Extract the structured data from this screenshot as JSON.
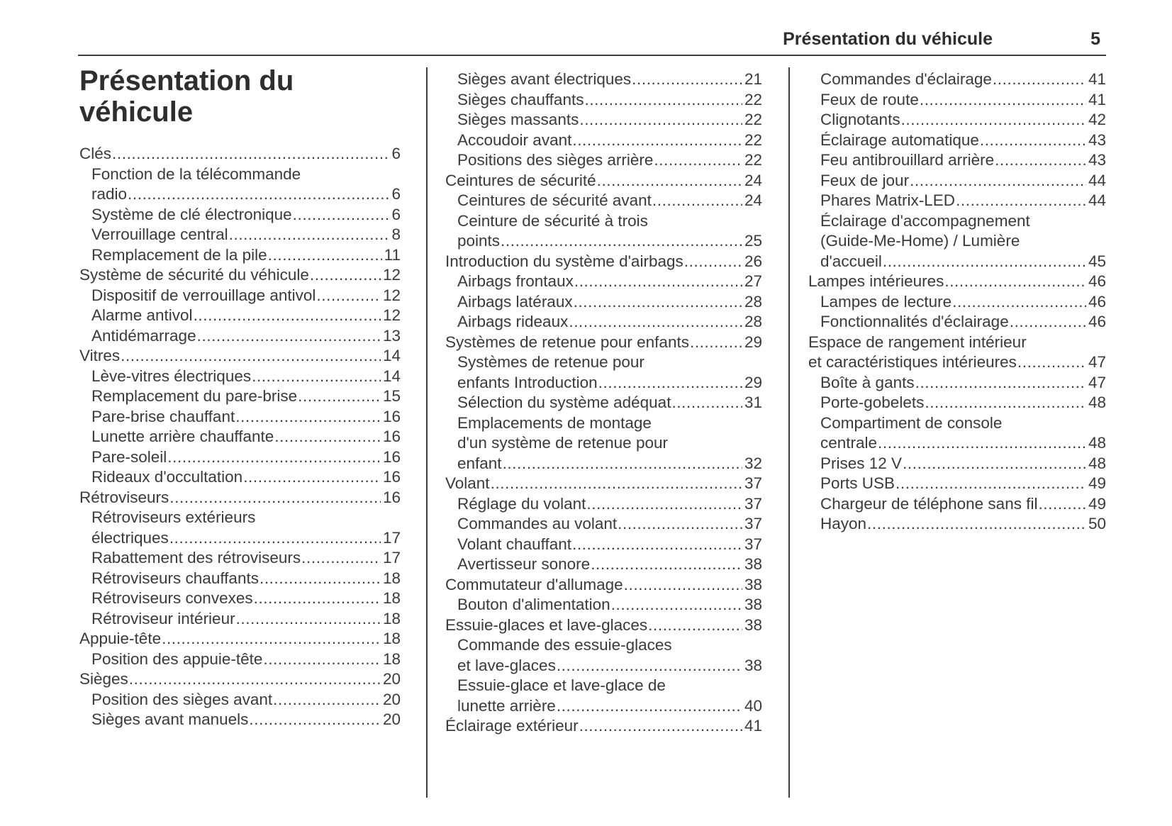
{
  "header": {
    "section_title": "Présentation du véhicule",
    "page_number": "5"
  },
  "title": {
    "lines": [
      "Présentation du",
      "véhicule"
    ]
  },
  "colors": {
    "bg": "#ffffff",
    "text": "#3a3a3a",
    "heading": "#2e2e2e",
    "rule": "#3d3d3d"
  },
  "columns": [
    {
      "entries": [
        {
          "level": 1,
          "lines": [
            "Clés"
          ],
          "page": "6"
        },
        {
          "level": 2,
          "lines": [
            "Fonction de la télécommande",
            "radio"
          ],
          "page": "6"
        },
        {
          "level": 2,
          "lines": [
            "Système de clé électronique"
          ],
          "page": "6"
        },
        {
          "level": 2,
          "lines": [
            "Verrouillage central"
          ],
          "page": "8"
        },
        {
          "level": 2,
          "lines": [
            "Remplacement de la pile"
          ],
          "page": "11"
        },
        {
          "level": 1,
          "lines": [
            "Système de sécurité du véhicule"
          ],
          "page": "12"
        },
        {
          "level": 2,
          "lines": [
            "Dispositif de verrouillage antivol"
          ],
          "page": "12"
        },
        {
          "level": 2,
          "lines": [
            "Alarme antivol"
          ],
          "page": "12"
        },
        {
          "level": 2,
          "lines": [
            "Antidémarrage"
          ],
          "page": "13"
        },
        {
          "level": 1,
          "lines": [
            "Vitres"
          ],
          "page": "14"
        },
        {
          "level": 2,
          "lines": [
            "Lève-vitres électriques"
          ],
          "page": "14"
        },
        {
          "level": 2,
          "lines": [
            "Remplacement du pare-brise"
          ],
          "page": "15"
        },
        {
          "level": 2,
          "lines": [
            "Pare-brise chauffant"
          ],
          "page": "16"
        },
        {
          "level": 2,
          "lines": [
            "Lunette arrière chauffante"
          ],
          "page": "16"
        },
        {
          "level": 2,
          "lines": [
            "Pare-soleil"
          ],
          "page": "16"
        },
        {
          "level": 2,
          "lines": [
            "Rideaux d'occultation"
          ],
          "page": "16"
        },
        {
          "level": 1,
          "lines": [
            "Rétroviseurs"
          ],
          "page": "16"
        },
        {
          "level": 2,
          "lines": [
            "Rétroviseurs extérieurs",
            "électriques"
          ],
          "page": "17"
        },
        {
          "level": 2,
          "lines": [
            "Rabattement des rétroviseurs"
          ],
          "page": "17"
        },
        {
          "level": 2,
          "lines": [
            "Rétroviseurs chauffants"
          ],
          "page": "18"
        },
        {
          "level": 2,
          "lines": [
            "Rétroviseurs convexes"
          ],
          "page": "18"
        },
        {
          "level": 2,
          "lines": [
            "Rétroviseur intérieur"
          ],
          "page": "18"
        },
        {
          "level": 1,
          "lines": [
            "Appuie-tête"
          ],
          "page": "18"
        },
        {
          "level": 2,
          "lines": [
            "Position des appuie-tête"
          ],
          "page": "18"
        },
        {
          "level": 1,
          "lines": [
            "Sièges"
          ],
          "page": "20"
        },
        {
          "level": 2,
          "lines": [
            "Position des sièges avant"
          ],
          "page": "20"
        },
        {
          "level": 2,
          "lines": [
            "Sièges avant manuels"
          ],
          "page": "20"
        }
      ]
    },
    {
      "entries": [
        {
          "level": 2,
          "lines": [
            "Sièges avant électriques"
          ],
          "page": "21"
        },
        {
          "level": 2,
          "lines": [
            "Sièges chauffants"
          ],
          "page": "22"
        },
        {
          "level": 2,
          "lines": [
            "Sièges massants"
          ],
          "page": "22"
        },
        {
          "level": 2,
          "lines": [
            "Accoudoir avant"
          ],
          "page": "22"
        },
        {
          "level": 2,
          "lines": [
            "Positions des sièges arrière"
          ],
          "page": "22"
        },
        {
          "level": 1,
          "lines": [
            "Ceintures de sécurité"
          ],
          "page": "24"
        },
        {
          "level": 2,
          "lines": [
            "Ceintures de sécurité avant"
          ],
          "page": "24"
        },
        {
          "level": 2,
          "lines": [
            "Ceinture de sécurité à trois",
            "points"
          ],
          "page": "25"
        },
        {
          "level": 1,
          "lines": [
            "Introduction du système d'airbags"
          ],
          "page": "26"
        },
        {
          "level": 2,
          "lines": [
            "Airbags frontaux"
          ],
          "page": "27"
        },
        {
          "level": 2,
          "lines": [
            "Airbags latéraux"
          ],
          "page": "28"
        },
        {
          "level": 2,
          "lines": [
            "Airbags rideaux"
          ],
          "page": "28"
        },
        {
          "level": 1,
          "lines": [
            "Systèmes de retenue pour enfants"
          ],
          "page": "29"
        },
        {
          "level": 2,
          "lines": [
            "Systèmes de retenue pour",
            "enfants Introduction"
          ],
          "page": "29"
        },
        {
          "level": 2,
          "lines": [
            "Sélection du système adéquat"
          ],
          "page": "31"
        },
        {
          "level": 2,
          "lines": [
            "Emplacements de montage",
            "d'un système de retenue pour",
            "enfant"
          ],
          "page": "32"
        },
        {
          "level": 1,
          "lines": [
            "Volant"
          ],
          "page": "37"
        },
        {
          "level": 2,
          "lines": [
            "Réglage du volant"
          ],
          "page": "37"
        },
        {
          "level": 2,
          "lines": [
            "Commandes au volant"
          ],
          "page": "37"
        },
        {
          "level": 2,
          "lines": [
            "Volant chauffant"
          ],
          "page": "37"
        },
        {
          "level": 2,
          "lines": [
            "Avertisseur sonore"
          ],
          "page": "38"
        },
        {
          "level": 1,
          "lines": [
            "Commutateur d'allumage"
          ],
          "page": "38"
        },
        {
          "level": 2,
          "lines": [
            "Bouton d'alimentation"
          ],
          "page": "38"
        },
        {
          "level": 1,
          "lines": [
            "Essuie-glaces et lave-glaces"
          ],
          "page": "38"
        },
        {
          "level": 2,
          "lines": [
            "Commande des essuie-glaces",
            "et lave-glaces"
          ],
          "page": "38"
        },
        {
          "level": 2,
          "lines": [
            "Essuie-glace et lave-glace de",
            "lunette arrière"
          ],
          "page": "40"
        },
        {
          "level": 1,
          "lines": [
            "Éclairage extérieur"
          ],
          "page": "41"
        }
      ]
    },
    {
      "entries": [
        {
          "level": 2,
          "lines": [
            "Commandes d'éclairage"
          ],
          "page": "41"
        },
        {
          "level": 2,
          "lines": [
            "Feux de route"
          ],
          "page": "41"
        },
        {
          "level": 2,
          "lines": [
            "Clignotants"
          ],
          "page": "42"
        },
        {
          "level": 2,
          "lines": [
            "Éclairage automatique"
          ],
          "page": "43"
        },
        {
          "level": 2,
          "lines": [
            "Feu antibrouillard arrière"
          ],
          "page": "43"
        },
        {
          "level": 2,
          "lines": [
            "Feux de jour"
          ],
          "page": "44"
        },
        {
          "level": 2,
          "lines": [
            "Phares Matrix-LED"
          ],
          "page": "44"
        },
        {
          "level": 2,
          "lines": [
            "Éclairage d'accompagnement",
            "(Guide-Me-Home) / Lumière",
            "d'accueil"
          ],
          "page": "45"
        },
        {
          "level": 1,
          "lines": [
            "Lampes intérieures"
          ],
          "page": "46"
        },
        {
          "level": 2,
          "lines": [
            "Lampes de lecture"
          ],
          "page": "46"
        },
        {
          "level": 2,
          "lines": [
            "Fonctionnalités d'éclairage"
          ],
          "page": "46"
        },
        {
          "level": 1,
          "lines": [
            "Espace de rangement intérieur",
            "et caractéristiques intérieures"
          ],
          "page": "47"
        },
        {
          "level": 2,
          "lines": [
            "Boîte à gants"
          ],
          "page": "47"
        },
        {
          "level": 2,
          "lines": [
            "Porte-gobelets"
          ],
          "page": "48"
        },
        {
          "level": 2,
          "lines": [
            "Compartiment de console",
            "centrale"
          ],
          "page": "48"
        },
        {
          "level": 2,
          "lines": [
            "Prises 12 V"
          ],
          "page": "48"
        },
        {
          "level": 2,
          "lines": [
            "Ports USB"
          ],
          "page": "49"
        },
        {
          "level": 2,
          "lines": [
            "Chargeur de téléphone sans fil"
          ],
          "page": "49"
        },
        {
          "level": 2,
          "lines": [
            "Hayon"
          ],
          "page": "50"
        }
      ]
    }
  ]
}
